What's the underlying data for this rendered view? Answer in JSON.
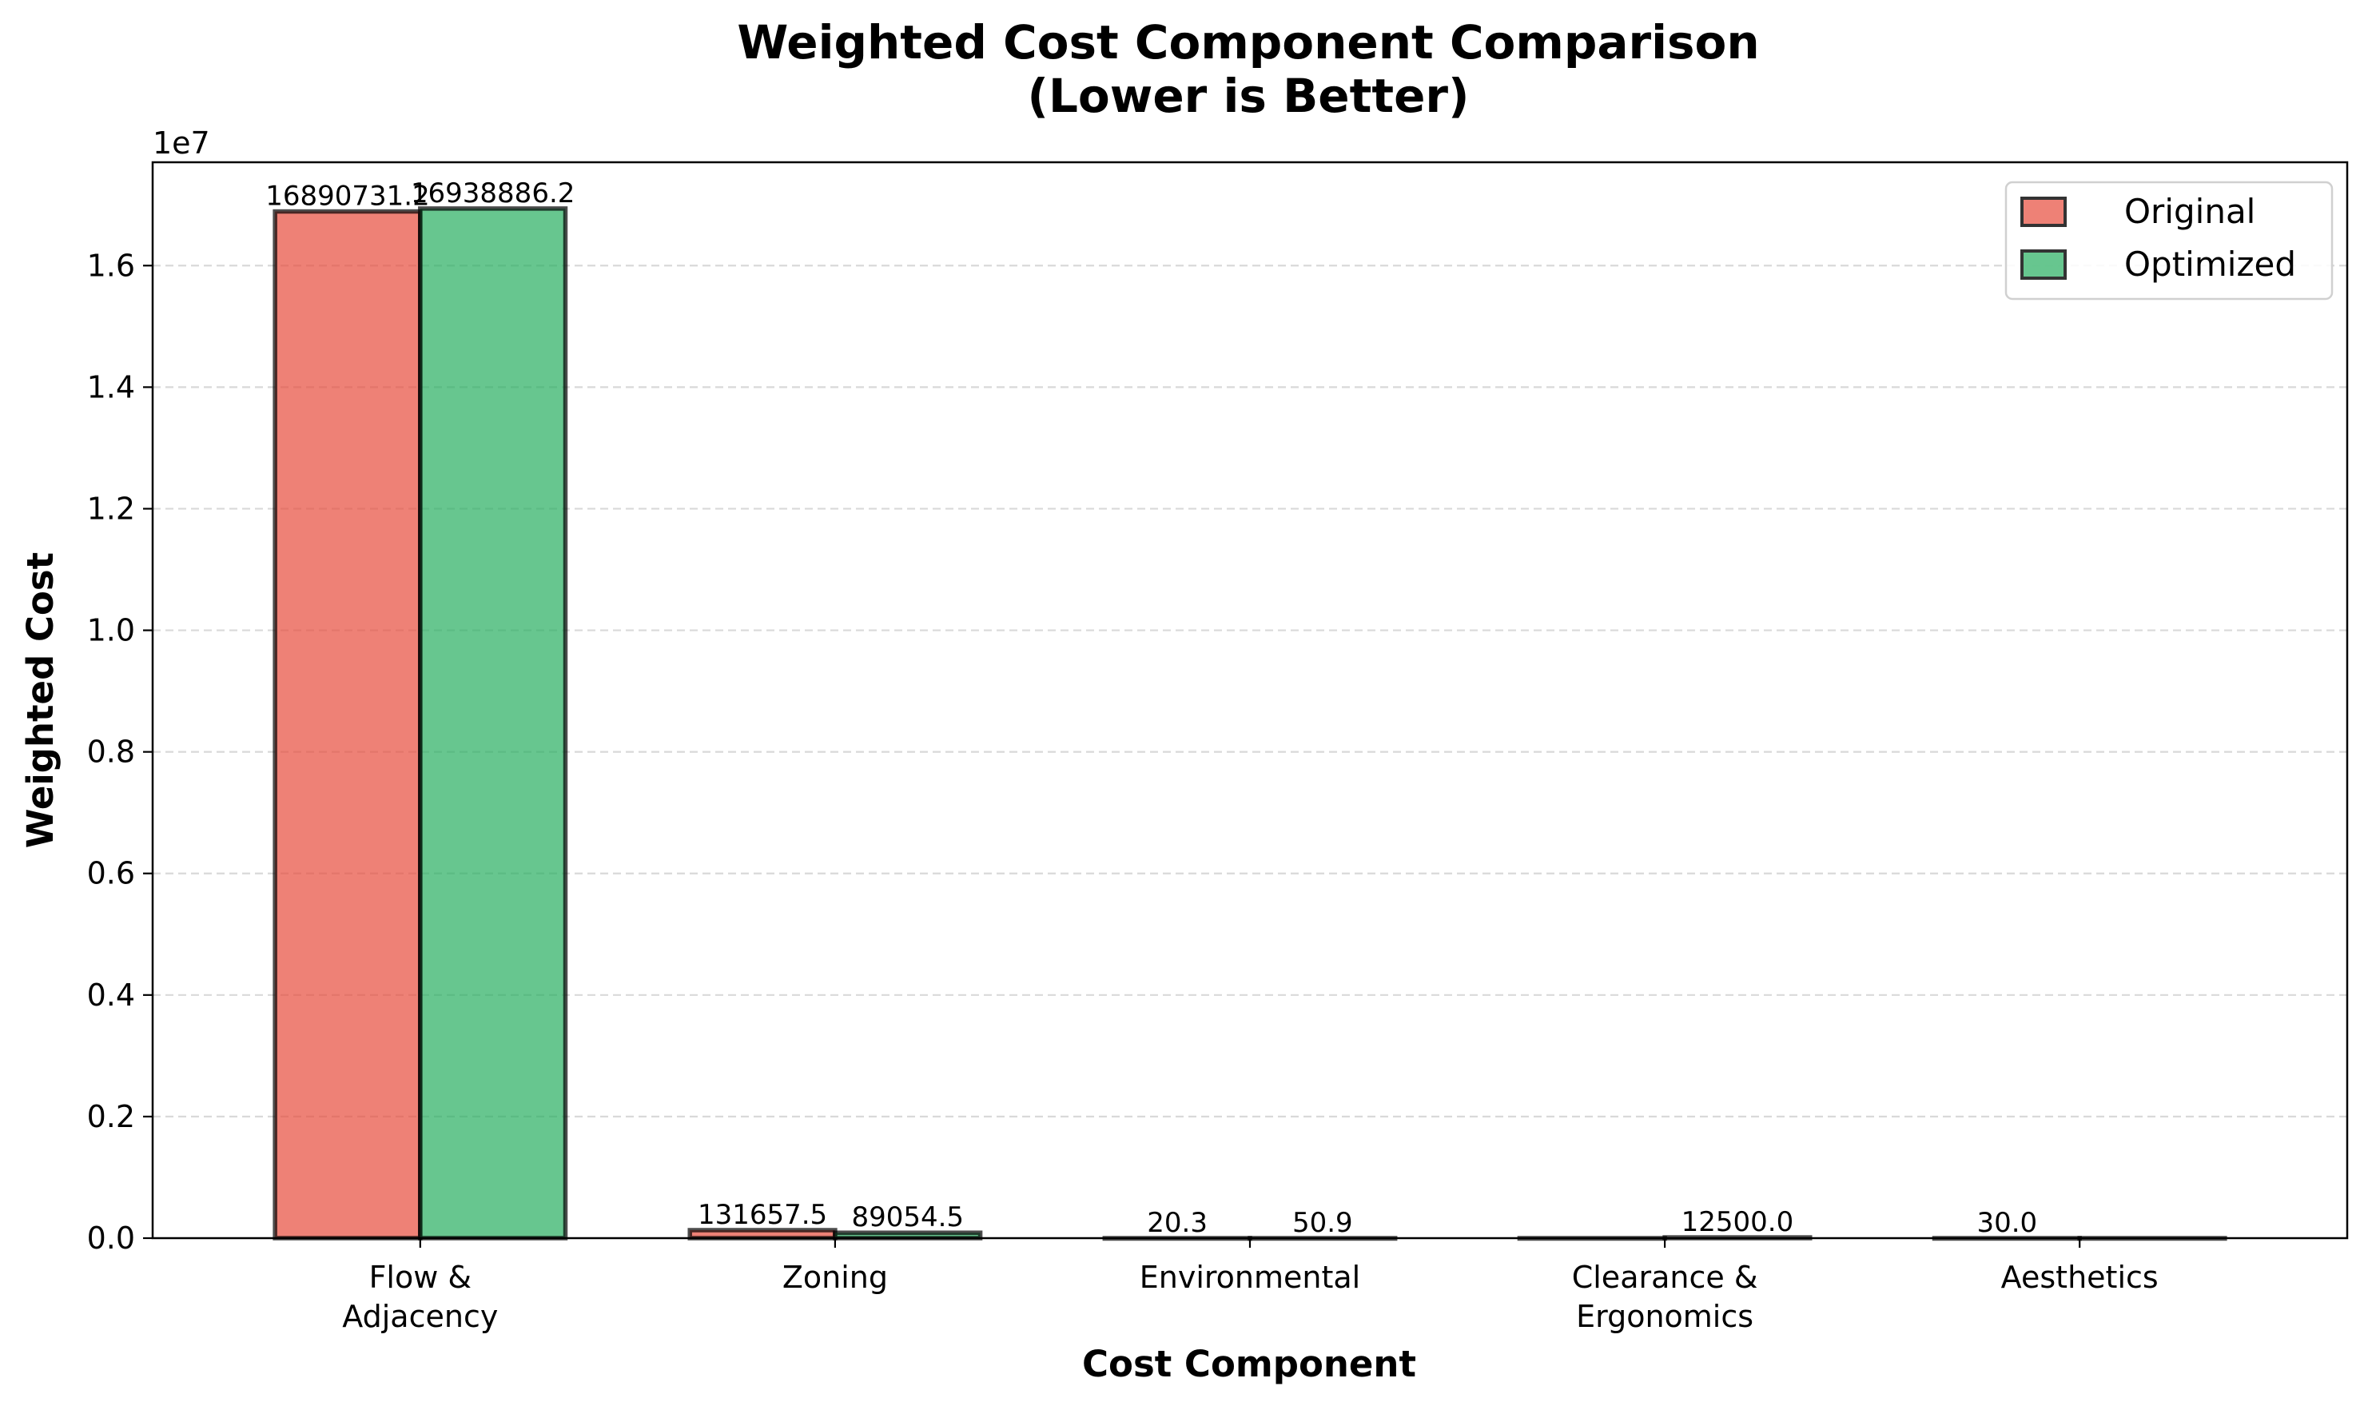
{
  "chart_data": {
    "type": "bar",
    "title": "Weighted Cost Component Comparison",
    "subtitle": "(Lower is Better)",
    "xlabel": "Cost Component",
    "ylabel": "Weighted Cost",
    "offset_label": "1e7",
    "categories": [
      [
        "Flow &",
        "Adjacency"
      ],
      [
        "Zoning"
      ],
      [
        "Environmental"
      ],
      [
        "Clearance &",
        "Ergonomics"
      ],
      [
        "Aesthetics"
      ]
    ],
    "series": [
      {
        "name": "Original",
        "color": "#e74c3c",
        "values": [
          16890731.2,
          131657.5,
          20.3,
          0,
          30.0
        ],
        "labels": [
          "16890731.2",
          "131657.5",
          "20.3",
          "",
          "30.0"
        ]
      },
      {
        "name": "Optimized",
        "color": "#27ae60",
        "values": [
          16938886.2,
          89054.5,
          50.9,
          12500.0,
          0
        ],
        "labels": [
          "16938886.2",
          "89054.5",
          "50.9",
          "12500.0",
          ""
        ]
      }
    ],
    "ylim": [
      0,
      17700000
    ],
    "yticks": [
      0,
      2000000,
      4000000,
      6000000,
      8000000,
      10000000,
      12000000,
      14000000,
      16000000
    ],
    "ytick_labels": [
      "0.0",
      "0.2",
      "0.4",
      "0.6",
      "0.8",
      "1.0",
      "1.2",
      "1.4",
      "1.6"
    ],
    "grid": "y-dashed",
    "legend_position": "upper-right"
  }
}
